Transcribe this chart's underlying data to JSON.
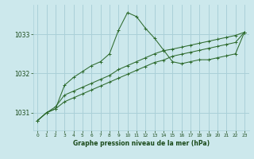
{
  "xlabel": "Graphe pression niveau de la mer (hPa)",
  "background_color": "#cce8ec",
  "grid_color": "#aad0d8",
  "line_color": "#2d6a2d",
  "text_color": "#1a4a1a",
  "yticks": [
    1031,
    1032,
    1033
  ],
  "ylim": [
    1030.55,
    1033.75
  ],
  "xlim": [
    -0.5,
    23.5
  ],
  "xticks": [
    0,
    1,
    2,
    3,
    4,
    5,
    6,
    7,
    8,
    9,
    10,
    11,
    12,
    13,
    14,
    15,
    16,
    17,
    18,
    19,
    20,
    21,
    22,
    23
  ],
  "series": [
    [
      1030.8,
      1031.0,
      1031.1,
      1031.7,
      1031.9,
      1032.05,
      1032.2,
      1032.3,
      1032.5,
      1033.1,
      1033.55,
      1033.45,
      1033.15,
      1032.9,
      1032.6,
      1032.3,
      1032.25,
      1032.3,
      1032.35,
      1032.35,
      1032.4,
      1032.45,
      1032.5,
      1033.05
    ],
    [
      1030.8,
      1031.0,
      1031.15,
      1031.45,
      1031.55,
      1031.65,
      1031.75,
      1031.85,
      1031.95,
      1032.1,
      1032.2,
      1032.3,
      1032.4,
      1032.5,
      1032.58,
      1032.62,
      1032.67,
      1032.72,
      1032.77,
      1032.82,
      1032.87,
      1032.92,
      1032.97,
      1033.05
    ],
    [
      1030.8,
      1031.0,
      1031.1,
      1031.28,
      1031.38,
      1031.48,
      1031.58,
      1031.68,
      1031.78,
      1031.88,
      1031.98,
      1032.08,
      1032.18,
      1032.28,
      1032.34,
      1032.44,
      1032.49,
      1032.54,
      1032.59,
      1032.64,
      1032.69,
      1032.74,
      1032.79,
      1033.05
    ]
  ]
}
